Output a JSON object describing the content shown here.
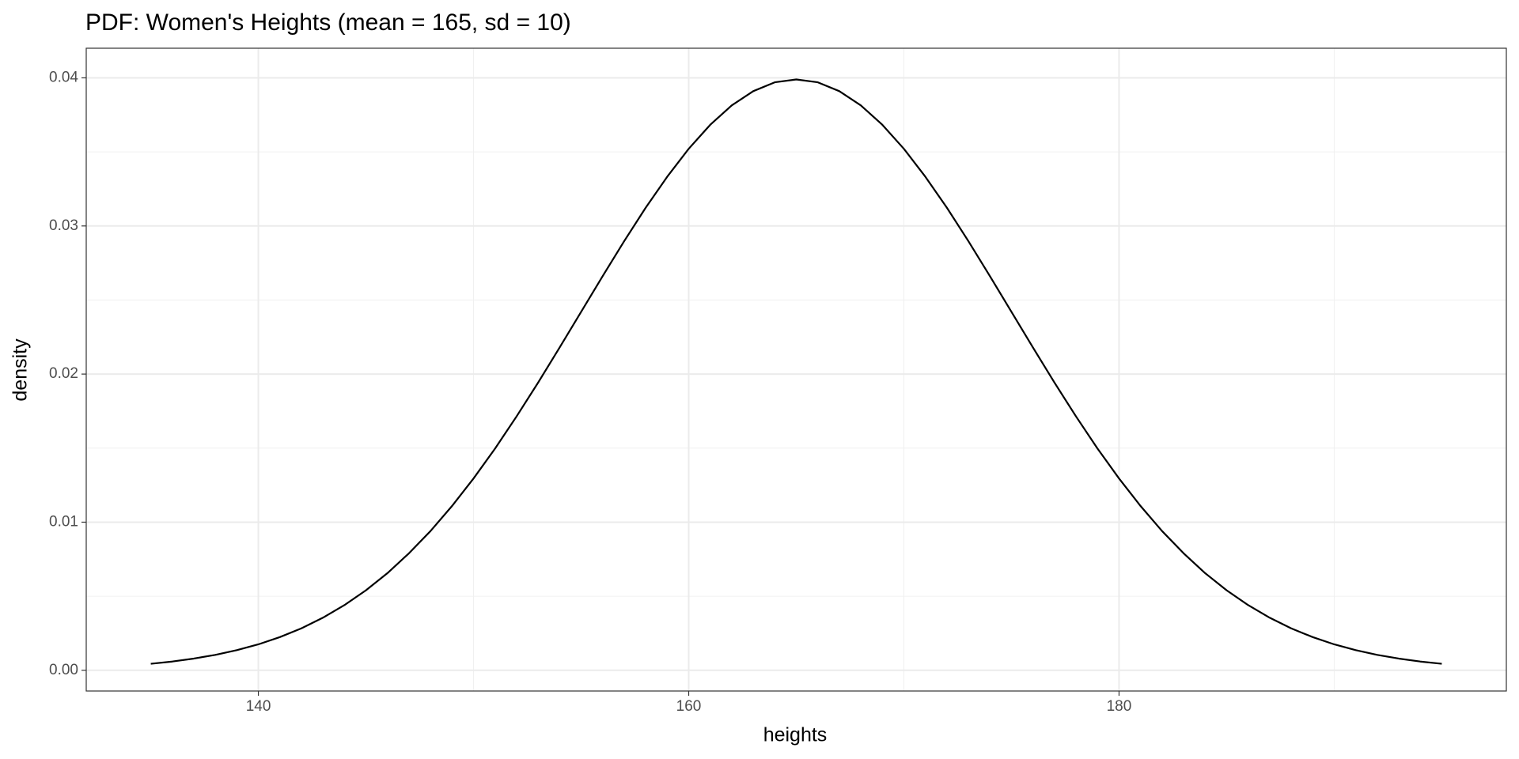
{
  "chart_data": {
    "type": "line",
    "title": "PDF: Women's Heights (mean = 165, sd = 10)",
    "x_label": "heights",
    "y_label": "density",
    "x": [
      135,
      136,
      137,
      138,
      139,
      140,
      141,
      142,
      143,
      144,
      145,
      146,
      147,
      148,
      149,
      150,
      151,
      152,
      153,
      154,
      155,
      156,
      157,
      158,
      159,
      160,
      161,
      162,
      163,
      164,
      165,
      166,
      167,
      168,
      169,
      170,
      171,
      172,
      173,
      174,
      175,
      176,
      177,
      178,
      179,
      180,
      181,
      182,
      183,
      184,
      185,
      186,
      187,
      188,
      189,
      190,
      191,
      192,
      193,
      194,
      195
    ],
    "series": [
      {
        "name": "density",
        "color": "#000000",
        "values": [
          0.00044,
          0.00059,
          0.00079,
          0.00104,
          0.00136,
          0.00175,
          0.00224,
          0.00283,
          0.00355,
          0.0044,
          0.0054,
          0.00656,
          0.0079,
          0.0094,
          0.01109,
          0.01295,
          0.01497,
          0.01714,
          0.01942,
          0.02179,
          0.0242,
          0.02661,
          0.02897,
          0.03123,
          0.03332,
          0.03521,
          0.03683,
          0.03814,
          0.0391,
          0.0397,
          0.03989,
          0.0397,
          0.0391,
          0.03814,
          0.03683,
          0.03521,
          0.03332,
          0.03123,
          0.02897,
          0.02661,
          0.0242,
          0.02179,
          0.01942,
          0.01714,
          0.01497,
          0.01295,
          0.01109,
          0.0094,
          0.0079,
          0.00656,
          0.0054,
          0.0044,
          0.00355,
          0.00283,
          0.00224,
          0.00175,
          0.00136,
          0.00104,
          0.00079,
          0.00059,
          0.00044
        ]
      }
    ],
    "xlim": [
      132,
      198
    ],
    "ylim": [
      -0.0014,
      0.042
    ],
    "xticks": [
      140,
      160,
      180
    ],
    "yticks": [
      {
        "value": 0,
        "label": "0.00"
      },
      {
        "value": 0.01,
        "label": "0.01"
      },
      {
        "value": 0.02,
        "label": "0.02"
      },
      {
        "value": 0.03,
        "label": "0.03"
      },
      {
        "value": 0.04,
        "label": "0.04"
      }
    ],
    "x_minor_gridlines": [
      150,
      170,
      190
    ],
    "y_minor_gridlines": [
      0.005,
      0.015,
      0.025,
      0.035
    ],
    "grid": true
  }
}
